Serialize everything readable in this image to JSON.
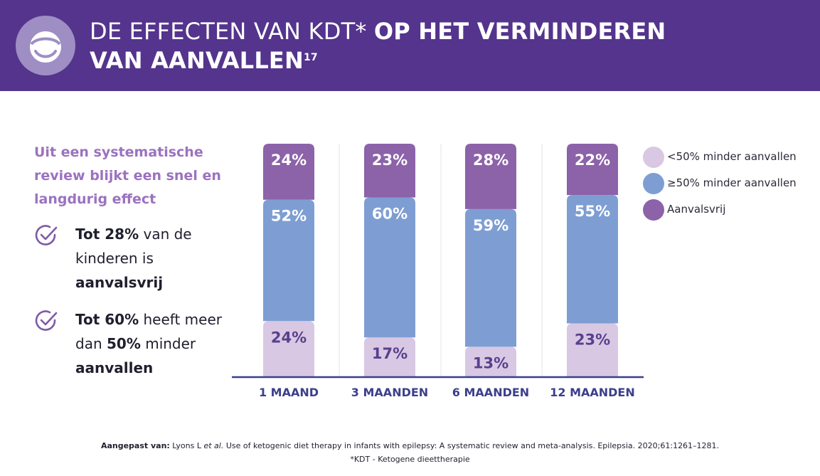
{
  "header": {
    "title_light": "DE EFFECTEN VAN KDT*",
    "title_bold_1": "OP HET VERMINDEREN",
    "title_bold_2": "VAN AANVALLEN",
    "title_sup": "17",
    "logo_icon": "smiley-face-icon"
  },
  "intro": "Uit een systematische review blijkt een snel en langdurig effect",
  "bullets": [
    {
      "icon": "check-circle-icon",
      "bold1": "Tot 28%",
      "text1": " van de kinderen is ",
      "bold2": "aanvalsvrij"
    },
    {
      "icon": "check-circle-icon",
      "bold1": "Tot 60%",
      "text1": " heeft meer dan ",
      "bold2": "50%",
      "text2": " minder ",
      "bold3": "aanvallen"
    }
  ],
  "chart_data": {
    "type": "bar",
    "stacked": true,
    "categories": [
      "1 MAAND",
      "3 MAANDEN",
      "6 MAANDEN",
      "12 MAANDEN"
    ],
    "series": [
      {
        "name": "<50% minder aanvallen",
        "values": [
          24,
          17,
          13,
          23
        ],
        "labels": [
          "24%",
          "17%",
          "13%",
          "23%"
        ],
        "color": "#d8c8e3"
      },
      {
        "name": "≥50% minder aanvallen",
        "values": [
          52,
          60,
          59,
          55
        ],
        "labels": [
          "52%",
          "60%",
          "59%",
          "55%"
        ],
        "color": "#7e9ed3"
      },
      {
        "name": "Aanvalsvrij",
        "values": [
          24,
          23,
          28,
          22
        ],
        "labels": [
          "24%",
          "23%",
          "28%",
          "22%"
        ],
        "color": "#8c62a9"
      }
    ],
    "legend_position": "right",
    "axis_color": "#3b3f8c",
    "category_label_color": "#3b3f8c"
  },
  "footer": {
    "source_label": "Aangepast van:",
    "source_author": " Lyons L ",
    "source_etal": "et al.",
    "source_text": " Use of ketogenic diet therapy in infants with epilepsy: A systematic review and meta-analysis. Epilepsia. 2020;61:1261–1281.",
    "note": "*KDT - Ketogene dieettherapie"
  },
  "colors": {
    "header_bg": "#54348c",
    "intro_text": "#9b72bf",
    "check": "#7e5aa8"
  }
}
